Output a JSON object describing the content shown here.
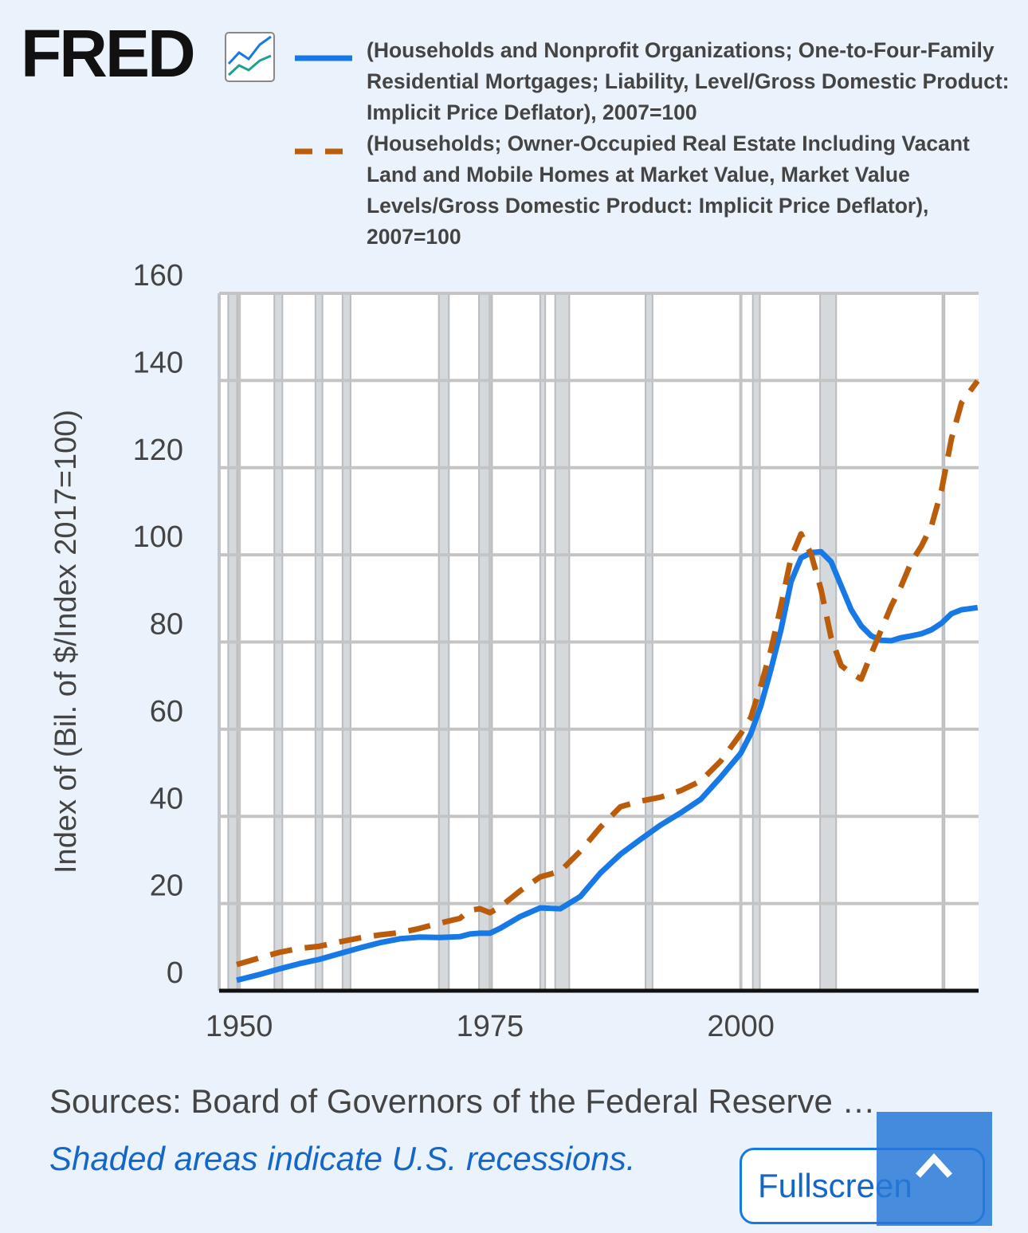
{
  "header": {
    "logo": "FRED"
  },
  "chart_data": {
    "type": "line",
    "y_label": "Index of (Bil. of $/Index 2017=100)",
    "x": [
      1949.75,
      1952,
      1954,
      1956,
      1958,
      1960,
      1962,
      1964,
      1966,
      1968,
      1970,
      1972,
      1973,
      1974,
      1975,
      1976,
      1978,
      1980,
      1982,
      1984,
      1986,
      1988,
      1990,
      1992,
      1994,
      1996,
      1998,
      2000,
      2001,
      2002,
      2003,
      2004,
      2005,
      2006,
      2007,
      2008,
      2009,
      2010,
      2011,
      2012,
      2013,
      2014,
      2015,
      2016,
      2017,
      2018,
      2019,
      2020,
      2021,
      2022,
      2023.6
    ],
    "series": [
      {
        "name": "(Households and Nonprofit Organizations; One-to-Four-Family Residential Mortgages; Liability, Level/Gross Domestic Product: Implicit Price Deflator), 2007=100",
        "color": "#1679e6",
        "dash": false,
        "values": [
          2.4,
          3.7,
          5.0,
          6.2,
          7.2,
          8.5,
          9.8,
          11.0,
          11.9,
          12.3,
          12.2,
          12.4,
          13.0,
          13.2,
          13.2,
          14.3,
          17,
          19,
          18.8,
          21.6,
          27,
          31.3,
          34.7,
          38,
          40.8,
          43.9,
          49,
          54.5,
          59,
          65.4,
          73.7,
          82.8,
          93.8,
          99.3,
          100.5,
          100.7,
          98.4,
          92.9,
          87.4,
          83.7,
          81.4,
          80.4,
          80.3,
          81,
          81.4,
          81.9,
          82.8,
          84.3,
          86.5,
          87.4,
          87.9
        ]
      },
      {
        "name": "(Households; Owner-Occupied Real Estate Including Vacant Land and Mobile Homes at Market Value, Market Value Levels/Gross Domestic Product: Implicit Price Deflator), 2007=100",
        "color": "#bb5c0a",
        "dash": true,
        "values": [
          6,
          7.5,
          8.8,
          9.7,
          10.2,
          11.2,
          12.1,
          12.8,
          13.3,
          14.3,
          15.5,
          16.6,
          18.5,
          18.8,
          17.9,
          19.2,
          22.9,
          26.1,
          27.4,
          32,
          37.5,
          42.2,
          43.5,
          44.4,
          45.9,
          48.1,
          52.7,
          59,
          62.7,
          70,
          78.2,
          88.3,
          99.3,
          104.8,
          100.2,
          92,
          81,
          74.6,
          72.8,
          71.5,
          77.3,
          82.8,
          88.3,
          92.9,
          98.4,
          102,
          106.6,
          114.8,
          126.7,
          134.9,
          139.9
        ]
      }
    ],
    "recessions": [
      [
        1948.9,
        1949.8
      ],
      [
        1953.5,
        1954.3
      ],
      [
        1957.6,
        1958.3
      ],
      [
        1960.3,
        1961.1
      ],
      [
        1969.9,
        1970.9
      ],
      [
        1973.9,
        1975.2
      ],
      [
        1980.0,
        1980.5
      ],
      [
        1981.5,
        1982.9
      ],
      [
        1990.5,
        1991.2
      ],
      [
        2001.2,
        2001.9
      ],
      [
        2007.9,
        2009.5
      ],
      [
        2020.1,
        2020.3
      ]
    ],
    "xlim": [
      1948,
      2023.7
    ],
    "xticks": [
      1950,
      1975,
      2000
    ],
    "ylim": [
      0,
      160
    ],
    "yticks": [
      0,
      20,
      40,
      60,
      80,
      100,
      120,
      140,
      160
    ],
    "grid": true
  },
  "footer": {
    "sources": "Sources: Board of Governors of the Federal Reserve …",
    "note": "Shaded areas indicate U.S. recessions.",
    "button": "Fullscreen"
  }
}
